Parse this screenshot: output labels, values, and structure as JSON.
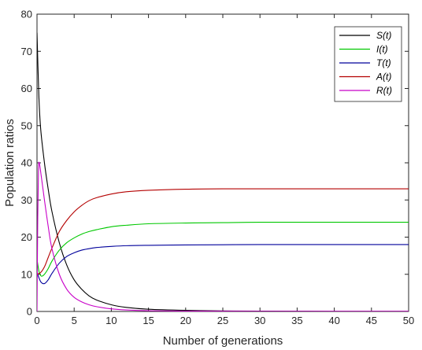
{
  "chart_data": {
    "type": "line",
    "title": "",
    "xlabel": "Number of generations",
    "ylabel": "Population ratios",
    "xlim": [
      0,
      50
    ],
    "ylim": [
      0,
      80
    ],
    "xticks": [
      0,
      5,
      10,
      15,
      20,
      25,
      30,
      35,
      40,
      45,
      50
    ],
    "yticks": [
      0,
      10,
      20,
      30,
      40,
      50,
      60,
      70,
      80
    ],
    "grid": false,
    "legend_position": "top-right",
    "series": [
      {
        "name": "S(t)",
        "color": "#000000",
        "points": [
          [
            0,
            75
          ],
          [
            0.25,
            58
          ],
          [
            0.5,
            49
          ],
          [
            1,
            40
          ],
          [
            1.5,
            33
          ],
          [
            2,
            27
          ],
          [
            3,
            18.5
          ],
          [
            4,
            12.5
          ],
          [
            5,
            8.5
          ],
          [
            6,
            6
          ],
          [
            7,
            4.2
          ],
          [
            8,
            3.1
          ],
          [
            10,
            1.8
          ],
          [
            12,
            1.1
          ],
          [
            15,
            0.6
          ],
          [
            20,
            0.3
          ],
          [
            25,
            0.15
          ],
          [
            30,
            0.1
          ],
          [
            40,
            0.05
          ],
          [
            50,
            0.05
          ]
        ]
      },
      {
        "name": "I(t)",
        "color": "#00c800",
        "points": [
          [
            0,
            14
          ],
          [
            0.3,
            10.5
          ],
          [
            0.6,
            9.5
          ],
          [
            1,
            10
          ],
          [
            1.5,
            11.5
          ],
          [
            2,
            13.5
          ],
          [
            3,
            16.5
          ],
          [
            4,
            18.5
          ],
          [
            5,
            19.8
          ],
          [
            6,
            20.8
          ],
          [
            7,
            21.5
          ],
          [
            8,
            22
          ],
          [
            10,
            22.8
          ],
          [
            12,
            23.2
          ],
          [
            15,
            23.6
          ],
          [
            20,
            23.8
          ],
          [
            25,
            23.9
          ],
          [
            30,
            24
          ],
          [
            40,
            24
          ],
          [
            50,
            24
          ]
        ]
      },
      {
        "name": "T(t)",
        "color": "#00009b",
        "points": [
          [
            0,
            10.5
          ],
          [
            0.5,
            8
          ],
          [
            1,
            7.5
          ],
          [
            1.5,
            8.5
          ],
          [
            2,
            10.2
          ],
          [
            3,
            13
          ],
          [
            4,
            14.8
          ],
          [
            5,
            15.8
          ],
          [
            6,
            16.5
          ],
          [
            7,
            16.9
          ],
          [
            8,
            17.2
          ],
          [
            10,
            17.5
          ],
          [
            12,
            17.7
          ],
          [
            15,
            17.8
          ],
          [
            20,
            17.9
          ],
          [
            25,
            17.95
          ],
          [
            30,
            18
          ],
          [
            40,
            18
          ],
          [
            50,
            18
          ]
        ]
      },
      {
        "name": "A(t)",
        "color": "#b40000",
        "points": [
          [
            0,
            10
          ],
          [
            0.5,
            10.5
          ],
          [
            1,
            12
          ],
          [
            1.5,
            14.5
          ],
          [
            2,
            17
          ],
          [
            3,
            21.5
          ],
          [
            4,
            24.5
          ],
          [
            5,
            26.8
          ],
          [
            6,
            28.5
          ],
          [
            7,
            29.8
          ],
          [
            8,
            30.6
          ],
          [
            10,
            31.6
          ],
          [
            12,
            32.2
          ],
          [
            15,
            32.6
          ],
          [
            20,
            32.9
          ],
          [
            25,
            33
          ],
          [
            30,
            33
          ],
          [
            40,
            33
          ],
          [
            50,
            33
          ]
        ]
      },
      {
        "name": "R(t)",
        "color": "#c800c8",
        "points": [
          [
            0,
            0
          ],
          [
            0.1,
            25
          ],
          [
            0.2,
            38
          ],
          [
            0.3,
            40
          ],
          [
            0.6,
            36
          ],
          [
            1,
            30
          ],
          [
            1.5,
            23
          ],
          [
            2,
            17
          ],
          [
            3,
            10
          ],
          [
            4,
            6
          ],
          [
            5,
            3.8
          ],
          [
            6,
            2.6
          ],
          [
            7,
            1.8
          ],
          [
            8,
            1.3
          ],
          [
            10,
            0.7
          ],
          [
            12,
            0.4
          ],
          [
            15,
            0.2
          ],
          [
            20,
            0.1
          ],
          [
            30,
            0.05
          ],
          [
            50,
            0.05
          ]
        ]
      }
    ]
  }
}
